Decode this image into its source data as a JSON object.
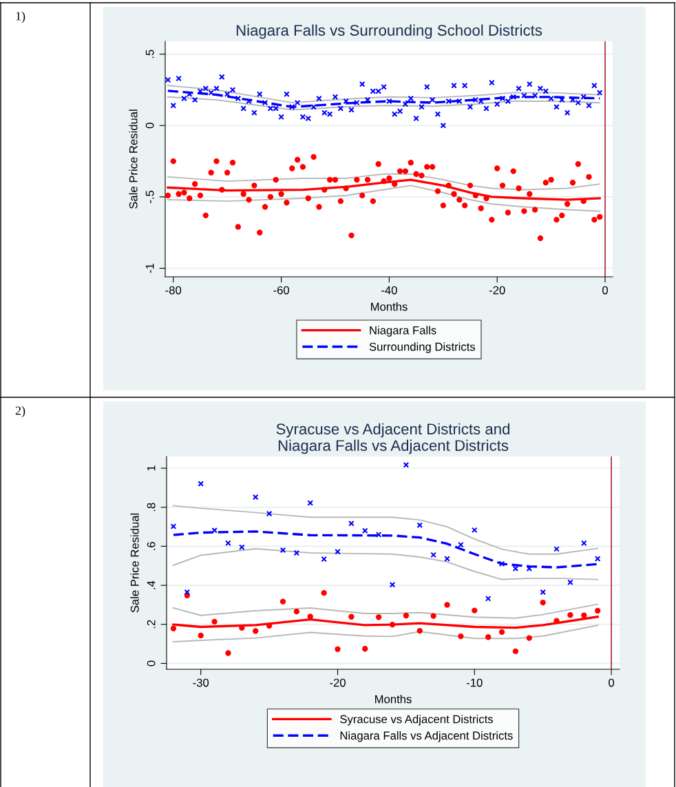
{
  "chart_data": [
    {
      "type": "scatter",
      "title": "Niagara Falls vs Surrounding School Districts",
      "xlabel": "Months",
      "ylabel": "Sale Price Residual",
      "annotations": [
        "1)"
      ],
      "xlim": [
        -81.5,
        1.4
      ],
      "xticks": [
        -80,
        -60,
        -40,
        -20,
        0
      ],
      "ylim": [
        -1.06,
        0.59
      ],
      "yticks": [
        {
          "value": 0.5,
          "label": ".5"
        },
        0,
        {
          "value": -0.5,
          "label": "-.5"
        },
        -1
      ],
      "grid": "y",
      "legend": "bottom",
      "ref_lines": [
        {
          "axis": "x",
          "value": 0,
          "color": "#b0213a"
        }
      ],
      "series": [
        {
          "color": "#ff0000",
          "marker": "circle",
          "x": [
            -81,
            -80,
            -79,
            -78,
            -77,
            -76,
            -75,
            -74,
            -73,
            -72,
            -71,
            -70,
            -69,
            -68,
            -67,
            -66,
            -65,
            -64,
            -63,
            -62,
            -61,
            -60,
            -59,
            -58,
            -57,
            -56,
            -55,
            -54,
            -53,
            -52,
            -51,
            -50,
            -49,
            -48,
            -47,
            -46,
            -45,
            -44,
            -43,
            -42,
            -41,
            -40,
            -39,
            -38,
            -37,
            -36,
            -35,
            -34,
            -33,
            -32,
            -31,
            -30,
            -29,
            -28,
            -27,
            -26,
            -25,
            -24,
            -23,
            -22,
            -21,
            -20,
            -19,
            -18,
            -17,
            -16,
            -15,
            -14,
            -13,
            -12,
            -11,
            -10,
            -9,
            -8,
            -7,
            -6,
            -5,
            -4,
            -3,
            -2,
            -1
          ],
          "values": [
            -0.49,
            -0.25,
            -0.48,
            -0.47,
            -0.51,
            -0.41,
            -0.49,
            -0.63,
            -0.33,
            -0.25,
            -0.45,
            -0.33,
            -0.26,
            -0.71,
            -0.48,
            -0.52,
            -0.42,
            -0.75,
            -0.57,
            -0.5,
            -0.38,
            -0.48,
            -0.54,
            -0.3,
            -0.24,
            -0.29,
            -0.51,
            -0.22,
            -0.57,
            -0.45,
            -0.38,
            -0.38,
            -0.53,
            -0.44,
            -0.77,
            -0.38,
            -0.49,
            -0.38,
            -0.53,
            -0.27,
            -0.39,
            -0.37,
            -0.41,
            -0.32,
            -0.32,
            -0.26,
            -0.34,
            -0.35,
            -0.29,
            -0.29,
            -0.46,
            -0.56,
            -0.42,
            -0.48,
            -0.52,
            -0.56,
            -0.42,
            -0.49,
            -0.58,
            -0.51,
            -0.66,
            -0.3,
            -0.42,
            -0.61,
            -0.32,
            -0.44,
            -0.6,
            -0.48,
            -0.59,
            -0.79,
            -0.4,
            -0.38,
            -0.66,
            -0.63,
            -0.55,
            -0.4,
            -0.27,
            -0.53,
            -0.36,
            -0.66,
            -0.64
          ]
        },
        {
          "color": "#0000ff",
          "marker": "cross",
          "x": [
            -81,
            -80,
            -79,
            -78,
            -77,
            -76,
            -75,
            -74,
            -73,
            -72,
            -71,
            -70,
            -69,
            -68,
            -67,
            -66,
            -65,
            -64,
            -63,
            -62,
            -61,
            -60,
            -59,
            -58,
            -57,
            -56,
            -55,
            -54,
            -53,
            -52,
            -51,
            -50,
            -49,
            -48,
            -47,
            -46,
            -45,
            -44,
            -43,
            -42,
            -41,
            -40,
            -39,
            -38,
            -37,
            -36,
            -35,
            -34,
            -33,
            -32,
            -31,
            -30,
            -29,
            -28,
            -27,
            -26,
            -25,
            -24,
            -23,
            -22,
            -21,
            -20,
            -19,
            -18,
            -17,
            -16,
            -15,
            -14,
            -13,
            -12,
            -11,
            -10,
            -9,
            -8,
            -7,
            -6,
            -5,
            -4,
            -3,
            -2,
            -1
          ],
          "values": [
            0.32,
            0.14,
            0.33,
            0.19,
            0.22,
            0.18,
            0.24,
            0.26,
            0.23,
            0.26,
            0.34,
            0.22,
            0.25,
            0.19,
            0.12,
            0.17,
            0.09,
            0.22,
            0.16,
            0.12,
            0.12,
            0.06,
            0.22,
            0.13,
            0.16,
            0.06,
            0.05,
            0.13,
            0.19,
            0.09,
            0.08,
            0.2,
            0.12,
            0.17,
            0.11,
            0.16,
            0.29,
            0.18,
            0.24,
            0.24,
            0.27,
            0.17,
            0.08,
            0.1,
            0.15,
            0.19,
            0.05,
            0.13,
            0.27,
            0.18,
            0.08,
            0.0,
            0.17,
            0.28,
            0.17,
            0.28,
            0.13,
            0.18,
            0.17,
            0.12,
            0.3,
            0.15,
            0.19,
            0.17,
            0.2,
            0.26,
            0.21,
            0.29,
            0.21,
            0.26,
            0.24,
            0.19,
            0.13,
            0.18,
            0.09,
            0.18,
            0.16,
            0.2,
            0.14,
            0.28,
            0.23
          ]
        },
        {
          "type": "line",
          "color": "#b8b8b8",
          "line_style": "solid",
          "x": [
            -81,
            -70,
            -56,
            -48,
            -41,
            -36,
            -30,
            -25,
            -21,
            -15,
            -7,
            -1
          ],
          "values": [
            -0.36,
            -0.39,
            -0.37,
            -0.37,
            -0.34,
            -0.34,
            -0.38,
            -0.42,
            -0.44,
            -0.45,
            -0.44,
            -0.41
          ]
        },
        {
          "type": "line",
          "color": "#b8b8b8",
          "line_style": "solid",
          "x": [
            -81,
            -70,
            -56,
            -48,
            -41,
            -36,
            -30,
            -25,
            -21,
            -15,
            -7,
            -1
          ],
          "values": [
            -0.52,
            -0.53,
            -0.51,
            -0.49,
            -0.45,
            -0.42,
            -0.47,
            -0.52,
            -0.55,
            -0.57,
            -0.59,
            -0.6
          ]
        },
        {
          "type": "line",
          "color": "#b8b8b8",
          "line_style": "solid",
          "x": [
            -81,
            -72,
            -58,
            -46,
            -40,
            -32,
            -24,
            -17,
            -10,
            -1
          ],
          "values": [
            0.28,
            0.25,
            0.16,
            0.19,
            0.2,
            0.195,
            0.21,
            0.23,
            0.23,
            0.215
          ]
        },
        {
          "type": "line",
          "color": "#b8b8b8",
          "line_style": "solid",
          "x": [
            -81,
            -72,
            -58,
            -46,
            -40,
            -32,
            -24,
            -17,
            -10,
            -1
          ],
          "values": [
            0.2,
            0.18,
            0.11,
            0.135,
            0.14,
            0.135,
            0.15,
            0.17,
            0.17,
            0.16
          ]
        },
        {
          "type": "line",
          "name": "Niagara Falls",
          "color": "#ff0000",
          "line_style": "solid",
          "x": [
            -81,
            -70,
            -56,
            -48,
            -41,
            -36,
            -30,
            -25,
            -21,
            -15,
            -7,
            -1
          ],
          "values": [
            -0.435,
            -0.455,
            -0.45,
            -0.43,
            -0.4,
            -0.38,
            -0.42,
            -0.47,
            -0.5,
            -0.51,
            -0.52,
            -0.51
          ]
        },
        {
          "type": "line",
          "name": "Surrounding Districts",
          "color": "#0000ff",
          "line_style": "dashed",
          "x": [
            -81,
            -72,
            -58,
            -46,
            -40,
            -32,
            -24,
            -17,
            -10,
            -1
          ],
          "values": [
            0.243,
            0.216,
            0.13,
            0.16,
            0.17,
            0.16,
            0.18,
            0.2,
            0.2,
            0.19
          ]
        }
      ]
    },
    {
      "type": "scatter",
      "title": "Syracuse vs Adjacent Districts and\nNiagara Falls vs Adjacent Districts",
      "xlabel": "Months",
      "ylabel": "Sale Price Residual",
      "annotations": [
        "2)"
      ],
      "xlim": [
        -32.5,
        0.6
      ],
      "xticks": [
        -30,
        -20,
        -10,
        0
      ],
      "ylim": [
        -0.03,
        1.06
      ],
      "yticks": [
        0,
        {
          "value": 0.2,
          "label": ".2"
        },
        {
          "value": 0.4,
          "label": ".4"
        },
        {
          "value": 0.6,
          "label": ".6"
        },
        {
          "value": 0.8,
          "label": ".8"
        },
        1
      ],
      "grid": "y",
      "legend": "bottom",
      "ref_lines": [
        {
          "axis": "x",
          "value": 0,
          "color": "#b0213a"
        }
      ],
      "series": [
        {
          "color": "#ff0000",
          "marker": "circle",
          "x": [
            -32,
            -31,
            -30,
            -29,
            -28,
            -27,
            -26,
            -25,
            -24,
            -23,
            -22,
            -21,
            -20,
            -19,
            -18,
            -17,
            -16,
            -15,
            -14,
            -13,
            -12,
            -11,
            -10,
            -9,
            -8,
            -7,
            -6,
            -5,
            -4,
            -3,
            -2,
            -1
          ],
          "values": [
            0.179,
            0.348,
            0.143,
            0.214,
            0.053,
            0.182,
            0.166,
            0.193,
            0.317,
            0.266,
            0.24,
            0.361,
            0.073,
            0.239,
            0.075,
            0.237,
            0.199,
            0.245,
            0.167,
            0.243,
            0.3,
            0.139,
            0.271,
            0.135,
            0.161,
            0.062,
            0.13,
            0.312,
            0.218,
            0.248,
            0.246,
            0.27
          ]
        },
        {
          "color": "#0000ff",
          "marker": "cross",
          "x": [
            -32,
            -31,
            -30,
            -29,
            -28,
            -27,
            -26,
            -25,
            -24,
            -23,
            -22,
            -21,
            -20,
            -19,
            -18,
            -17,
            -16,
            -15,
            -14,
            -13,
            -12,
            -11,
            -10,
            -9,
            -8,
            -7,
            -6,
            -5,
            -4,
            -3,
            -2,
            -1
          ],
          "values": [
            0.702,
            0.365,
            0.921,
            0.682,
            0.616,
            0.595,
            0.852,
            0.767,
            0.58,
            0.566,
            0.822,
            0.534,
            0.572,
            0.717,
            0.68,
            0.66,
            0.403,
            1.017,
            0.708,
            0.556,
            0.536,
            0.608,
            0.683,
            0.332,
            0.511,
            0.486,
            0.486,
            0.365,
            0.586,
            0.415,
            0.616,
            0.536
          ]
        },
        {
          "type": "line",
          "color": "#b8b8b8",
          "line_style": "solid",
          "x": [
            -32,
            -30,
            -26,
            -22,
            -18,
            -16,
            -14,
            -10,
            -7,
            -5,
            -1
          ],
          "values": [
            0.284,
            0.246,
            0.27,
            0.284,
            0.256,
            0.256,
            0.26,
            0.237,
            0.232,
            0.25,
            0.303
          ]
        },
        {
          "type": "line",
          "color": "#b8b8b8",
          "line_style": "solid",
          "x": [
            -32,
            -30,
            -26,
            -22,
            -18,
            -16,
            -14,
            -10,
            -7,
            -5,
            -1
          ],
          "values": [
            0.111,
            0.118,
            0.13,
            0.159,
            0.14,
            0.138,
            0.163,
            0.128,
            0.128,
            0.14,
            0.195
          ]
        },
        {
          "type": "line",
          "color": "#b8b8b8",
          "line_style": "solid",
          "x": [
            -32,
            -30,
            -26,
            -22,
            -16,
            -14,
            -12,
            -10,
            -8,
            -6,
            -4,
            -1
          ],
          "values": [
            0.808,
            0.795,
            0.773,
            0.749,
            0.749,
            0.735,
            0.7,
            0.637,
            0.585,
            0.56,
            0.56,
            0.589
          ]
        },
        {
          "type": "line",
          "color": "#b8b8b8",
          "line_style": "solid",
          "x": [
            -32,
            -30,
            -26,
            -22,
            -16,
            -14,
            -12,
            -10,
            -8,
            -6,
            -4,
            -1
          ],
          "values": [
            0.503,
            0.554,
            0.587,
            0.566,
            0.56,
            0.545,
            0.52,
            0.471,
            0.43,
            0.436,
            0.436,
            0.43
          ]
        },
        {
          "type": "line",
          "name": "Syracuse vs Adjacent Districts",
          "color": "#ff0000",
          "line_style": "solid",
          "x": [
            -32,
            -30,
            -26,
            -22,
            -18,
            -16,
            -14,
            -10,
            -7,
            -5,
            -1
          ],
          "values": [
            0.199,
            0.187,
            0.196,
            0.225,
            0.196,
            0.199,
            0.206,
            0.187,
            0.183,
            0.196,
            0.239
          ]
        },
        {
          "type": "line",
          "name": "Niagara Falls vs Adjacent Districts",
          "color": "#0000ff",
          "line_style": "dashed",
          "x": [
            -32,
            -30,
            -26,
            -22,
            -16,
            -14,
            -12,
            -10,
            -8,
            -6,
            -4,
            -1
          ],
          "values": [
            0.658,
            0.67,
            0.676,
            0.657,
            0.655,
            0.645,
            0.613,
            0.56,
            0.51,
            0.497,
            0.492,
            0.509
          ]
        }
      ]
    }
  ]
}
